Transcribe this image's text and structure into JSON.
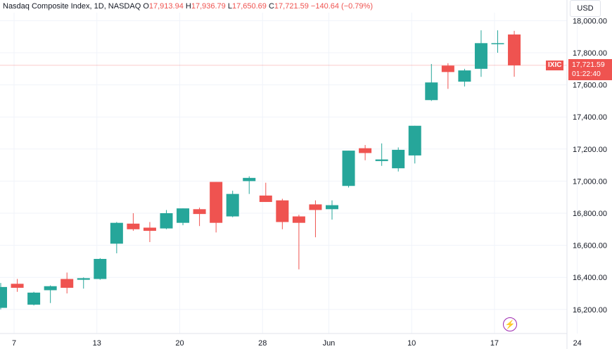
{
  "header": {
    "title": "Nasdaq Composite Index, 1D, NASDAQ",
    "open_label": "O",
    "open": "17,913.94",
    "high_label": "H",
    "high": "17,936.79",
    "low_label": "L",
    "low": "17,650.69",
    "close_label": "C",
    "close": "17,721.59",
    "change": "−140.64 (−0.79%)"
  },
  "currency_button": "USD",
  "price_tag": {
    "symbol": "IXIC",
    "price": "17,721.59",
    "countdown": "01:22:40"
  },
  "icons": {
    "bolt": "lightning-icon"
  },
  "colors": {
    "up": "#26a69a",
    "down": "#ef5350",
    "last_price_line": "#ef5350",
    "accent": "#9c27b0"
  },
  "chart_data": {
    "type": "candlestick",
    "ylim": [
      16050,
      18050
    ],
    "yticks": [
      16200,
      16400,
      16600,
      16800,
      17000,
      17200,
      17400,
      17600,
      17800,
      18000
    ],
    "ytick_labels": [
      "16,200.00",
      "16,400.00",
      "16,600.00",
      "16,800.00",
      "17,000.00",
      "17,200.00",
      "17,400.00",
      "17,600.00",
      "17,800.00",
      "18,000.00"
    ],
    "xtick_labels": [
      "7",
      "13",
      "20",
      "28",
      "Jun",
      "10",
      "17",
      "24"
    ],
    "last_price": 17721.59,
    "candles": [
      {
        "o": 16210,
        "h": 16365,
        "l": 16200,
        "c": 16340
      },
      {
        "o": 16360,
        "h": 16390,
        "l": 16310,
        "c": 16335
      },
      {
        "o": 16230,
        "h": 16310,
        "l": 16225,
        "c": 16305
      },
      {
        "o": 16320,
        "h": 16350,
        "l": 16240,
        "c": 16345
      },
      {
        "o": 16390,
        "h": 16430,
        "l": 16300,
        "c": 16335
      },
      {
        "o": 16385,
        "h": 16400,
        "l": 16330,
        "c": 16395
      },
      {
        "o": 16390,
        "h": 16520,
        "l": 16385,
        "c": 16515
      },
      {
        "o": 16610,
        "h": 16745,
        "l": 16550,
        "c": 16740
      },
      {
        "o": 16735,
        "h": 16800,
        "l": 16690,
        "c": 16700
      },
      {
        "o": 16710,
        "h": 16745,
        "l": 16620,
        "c": 16690
      },
      {
        "o": 16705,
        "h": 16820,
        "l": 16700,
        "c": 16800
      },
      {
        "o": 16740,
        "h": 16830,
        "l": 16725,
        "c": 16830
      },
      {
        "o": 16825,
        "h": 16835,
        "l": 16720,
        "c": 16795
      },
      {
        "o": 16995,
        "h": 16995,
        "l": 16680,
        "c": 16740
      },
      {
        "o": 16780,
        "h": 16940,
        "l": 16775,
        "c": 16920
      },
      {
        "o": 17000,
        "h": 17030,
        "l": 16920,
        "c": 17020
      },
      {
        "o": 16910,
        "h": 16990,
        "l": 16870,
        "c": 16870
      },
      {
        "o": 16880,
        "h": 16890,
        "l": 16700,
        "c": 16745
      },
      {
        "o": 16780,
        "h": 16790,
        "l": 16450,
        "c": 16740
      },
      {
        "o": 16855,
        "h": 16880,
        "l": 16650,
        "c": 16820
      },
      {
        "o": 16825,
        "h": 16880,
        "l": 16760,
        "c": 16850
      },
      {
        "o": 16970,
        "h": 17190,
        "l": 16960,
        "c": 17190
      },
      {
        "o": 17205,
        "h": 17225,
        "l": 17130,
        "c": 17175
      },
      {
        "o": 17125,
        "h": 17235,
        "l": 17095,
        "c": 17135
      },
      {
        "o": 17080,
        "h": 17210,
        "l": 17060,
        "c": 17195
      },
      {
        "o": 17160,
        "h": 17345,
        "l": 17110,
        "c": 17345
      },
      {
        "o": 17505,
        "h": 17730,
        "l": 17500,
        "c": 17615
      },
      {
        "o": 17720,
        "h": 17735,
        "l": 17575,
        "c": 17680
      },
      {
        "o": 17620,
        "h": 17700,
        "l": 17590,
        "c": 17690
      },
      {
        "o": 17700,
        "h": 17940,
        "l": 17650,
        "c": 17860
      },
      {
        "o": 17860,
        "h": 17940,
        "l": 17800,
        "c": 17860
      },
      {
        "o": 17913.94,
        "h": 17936.79,
        "l": 17650.69,
        "c": 17721.59
      }
    ]
  }
}
